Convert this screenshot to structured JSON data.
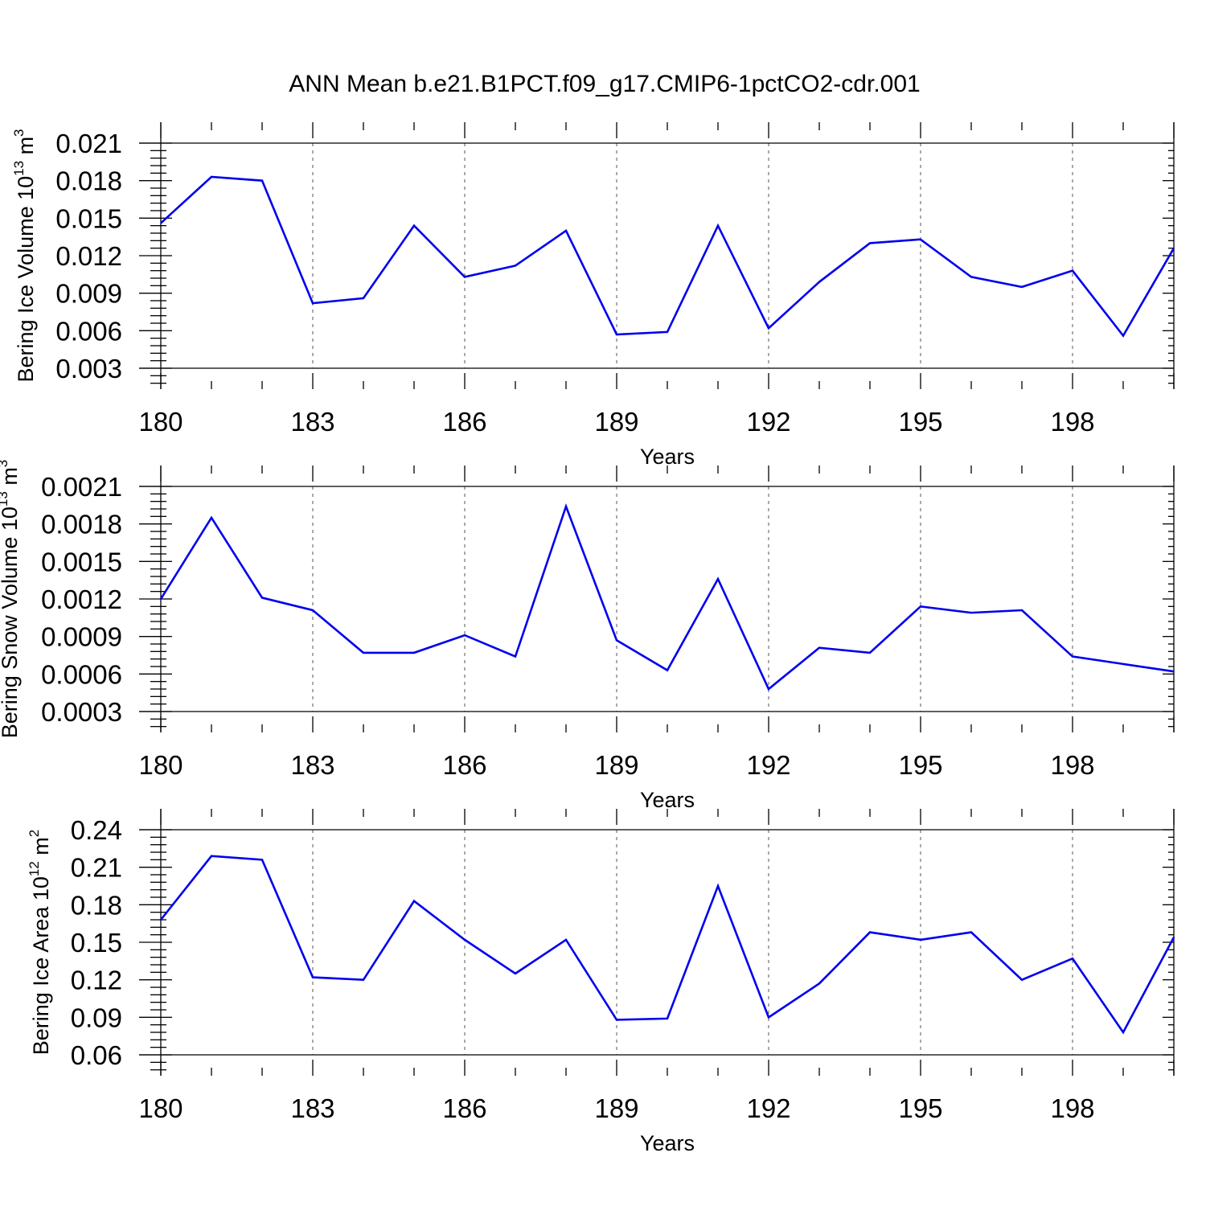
{
  "figure": {
    "title": "ANN Mean b.e21.B1PCT.f09_g17.CMIP6-1pctCO2-cdr.001",
    "line_color": "#0000ee"
  },
  "chart_data": [
    {
      "type": "line",
      "title": "",
      "xlabel": "Years",
      "ylabel": {
        "base": "Bering Ice Volume 10",
        "exponent": "13",
        "unit": " m",
        "unit_exponent": "3"
      },
      "xlim": [
        180,
        200
      ],
      "ylim": [
        0.003,
        0.021
      ],
      "grid": "vertical dashed at major x ticks",
      "x_ticks": [
        {
          "value": 180,
          "label": "180"
        },
        {
          "value": 183,
          "label": "183"
        },
        {
          "value": 186,
          "label": "186"
        },
        {
          "value": 189,
          "label": "189"
        },
        {
          "value": 192,
          "label": "192"
        },
        {
          "value": 195,
          "label": "195"
        },
        {
          "value": 198,
          "label": "198"
        }
      ],
      "y_ticks": [
        {
          "value": 0.003,
          "label": "0.003"
        },
        {
          "value": 0.006,
          "label": "0.006"
        },
        {
          "value": 0.009,
          "label": "0.009"
        },
        {
          "value": 0.012,
          "label": "0.012"
        },
        {
          "value": 0.015,
          "label": "0.015"
        },
        {
          "value": 0.018,
          "label": "0.018"
        },
        {
          "value": 0.021,
          "label": "0.021"
        }
      ],
      "x": [
        180,
        181,
        182,
        183,
        184,
        185,
        186,
        187,
        188,
        189,
        190,
        191,
        192,
        193,
        194,
        195,
        196,
        197,
        198,
        199,
        200
      ],
      "series": [
        {
          "values": [
            0.0146,
            0.0183,
            0.018,
            0.0082,
            0.0086,
            0.0144,
            0.0103,
            0.0112,
            0.014,
            0.0057,
            0.0059,
            0.0144,
            0.0062,
            0.0099,
            0.013,
            0.0133,
            0.0103,
            0.0095,
            0.0108,
            0.0056,
            0.0126
          ]
        }
      ]
    },
    {
      "type": "line",
      "title": "",
      "xlabel": "Years",
      "ylabel": {
        "base": "Bering Snow Volume 10",
        "exponent": "13",
        "unit": " m",
        "unit_exponent": "3"
      },
      "xlim": [
        180,
        200
      ],
      "ylim": [
        0.0003,
        0.0021
      ],
      "grid": "vertical dashed at major x ticks",
      "x_ticks": [
        {
          "value": 180,
          "label": "180"
        },
        {
          "value": 183,
          "label": "183"
        },
        {
          "value": 186,
          "label": "186"
        },
        {
          "value": 189,
          "label": "189"
        },
        {
          "value": 192,
          "label": "192"
        },
        {
          "value": 195,
          "label": "195"
        },
        {
          "value": 198,
          "label": "198"
        }
      ],
      "y_ticks": [
        {
          "value": 0.0003,
          "label": "0.0003"
        },
        {
          "value": 0.0006,
          "label": "0.0006"
        },
        {
          "value": 0.0009,
          "label": "0.0009"
        },
        {
          "value": 0.0012,
          "label": "0.0012"
        },
        {
          "value": 0.0015,
          "label": "0.0015"
        },
        {
          "value": 0.0018,
          "label": "0.0018"
        },
        {
          "value": 0.0021,
          "label": "0.0021"
        }
      ],
      "x": [
        180,
        181,
        182,
        183,
        184,
        185,
        186,
        187,
        188,
        189,
        190,
        191,
        192,
        193,
        194,
        195,
        196,
        197,
        198,
        199,
        200
      ],
      "series": [
        {
          "values": [
            0.0012,
            0.00185,
            0.00121,
            0.00111,
            0.00077,
            0.00077,
            0.00091,
            0.00074,
            0.00194,
            0.00087,
            0.00063,
            0.00136,
            0.00048,
            0.00081,
            0.00077,
            0.00114,
            0.00109,
            0.00111,
            0.00074,
            0.00068,
            0.00062
          ]
        }
      ]
    },
    {
      "type": "line",
      "title": "",
      "xlabel": "Years",
      "ylabel": {
        "base": "Bering Ice Area 10",
        "exponent": "12",
        "unit": " m",
        "unit_exponent": "2"
      },
      "xlim": [
        180,
        200
      ],
      "ylim": [
        0.06,
        0.24
      ],
      "grid": "vertical dashed at major x ticks",
      "x_ticks": [
        {
          "value": 180,
          "label": "180"
        },
        {
          "value": 183,
          "label": "183"
        },
        {
          "value": 186,
          "label": "186"
        },
        {
          "value": 189,
          "label": "189"
        },
        {
          "value": 192,
          "label": "192"
        },
        {
          "value": 195,
          "label": "195"
        },
        {
          "value": 198,
          "label": "198"
        }
      ],
      "y_ticks": [
        {
          "value": 0.06,
          "label": "0.06"
        },
        {
          "value": 0.09,
          "label": "0.09"
        },
        {
          "value": 0.12,
          "label": "0.12"
        },
        {
          "value": 0.15,
          "label": "0.15"
        },
        {
          "value": 0.18,
          "label": "0.18"
        },
        {
          "value": 0.21,
          "label": "0.21"
        },
        {
          "value": 0.24,
          "label": "0.24"
        }
      ],
      "x": [
        180,
        181,
        182,
        183,
        184,
        185,
        186,
        187,
        188,
        189,
        190,
        191,
        192,
        193,
        194,
        195,
        196,
        197,
        198,
        199,
        200
      ],
      "series": [
        {
          "values": [
            0.168,
            0.219,
            0.216,
            0.122,
            0.12,
            0.183,
            0.152,
            0.125,
            0.152,
            0.088,
            0.089,
            0.195,
            0.09,
            0.117,
            0.158,
            0.152,
            0.158,
            0.12,
            0.137,
            0.078,
            0.154
          ]
        }
      ]
    }
  ]
}
